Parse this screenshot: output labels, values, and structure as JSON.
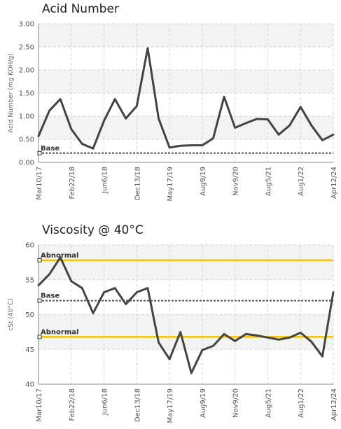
{
  "chart_data": [
    {
      "type": "line",
      "title": "Acid Number",
      "ylabel": "Acid Number (mg KOH/g)",
      "xlabel": "",
      "ylim": [
        0,
        3.0
      ],
      "yticks": [
        "0.00",
        "0.50",
        "1.00",
        "1.50",
        "2.00",
        "2.50",
        "3.00"
      ],
      "ytick_values": [
        0,
        0.5,
        1.0,
        1.5,
        2.0,
        2.5,
        3.0
      ],
      "xtick_labels": [
        "Mar10/17",
        "Feb22/18",
        "Jun6/18",
        "Dec13/18",
        "May17/19",
        "Aug9/19",
        "Nov9/20",
        "Aug5/21",
        "Aug1/22",
        "Apr12/24"
      ],
      "grid": true,
      "series": [
        {
          "values": [
            0.57,
            1.12,
            1.37,
            0.72,
            0.4,
            0.3,
            0.9,
            1.37,
            0.95,
            1.22,
            2.47,
            0.95,
            0.32,
            0.36,
            0.37,
            0.37,
            0.52,
            1.42,
            0.75,
            0.85,
            0.94,
            0.93,
            0.6,
            0.8,
            1.2,
            0.8,
            0.48,
            0.6
          ],
          "color": "#444444"
        }
      ],
      "reference_lines": [
        {
          "label": "Base",
          "value": 0.2,
          "color": "#555555"
        }
      ]
    },
    {
      "type": "line",
      "title": "Viscosity @ 40°C",
      "ylabel": "cSt (40°C)",
      "xlabel": "",
      "ylim": [
        40,
        60
      ],
      "yticks": [
        "40",
        "45",
        "50",
        "55",
        "60"
      ],
      "ytick_values": [
        40,
        45,
        50,
        55,
        60
      ],
      "xtick_labels": [
        "Mar10/17",
        "Feb22/18",
        "Jun6/18",
        "Dec13/18",
        "May17/19",
        "Aug9/19",
        "Nov9/20",
        "Aug5/21",
        "Aug1/22",
        "Apr12/24"
      ],
      "grid": true,
      "series": [
        {
          "values": [
            54.2,
            55.8,
            58.2,
            54.8,
            53.8,
            50.2,
            53.2,
            53.8,
            51.5,
            53.2,
            53.8,
            46.0,
            43.6,
            47.5,
            41.6,
            44.9,
            45.5,
            47.2,
            46.2,
            47.2,
            47.0,
            46.7,
            46.4,
            46.7,
            47.4,
            46.1,
            44.0,
            53.2
          ],
          "color": "#444444"
        }
      ],
      "reference_lines": [
        {
          "label": "Abnormal",
          "value": 57.8,
          "color": "#f2c500"
        },
        {
          "label": "Base",
          "value": 52.0,
          "color": "#555555"
        },
        {
          "label": "Abnormal",
          "value": 46.8,
          "color": "#f2c500"
        }
      ]
    }
  ]
}
